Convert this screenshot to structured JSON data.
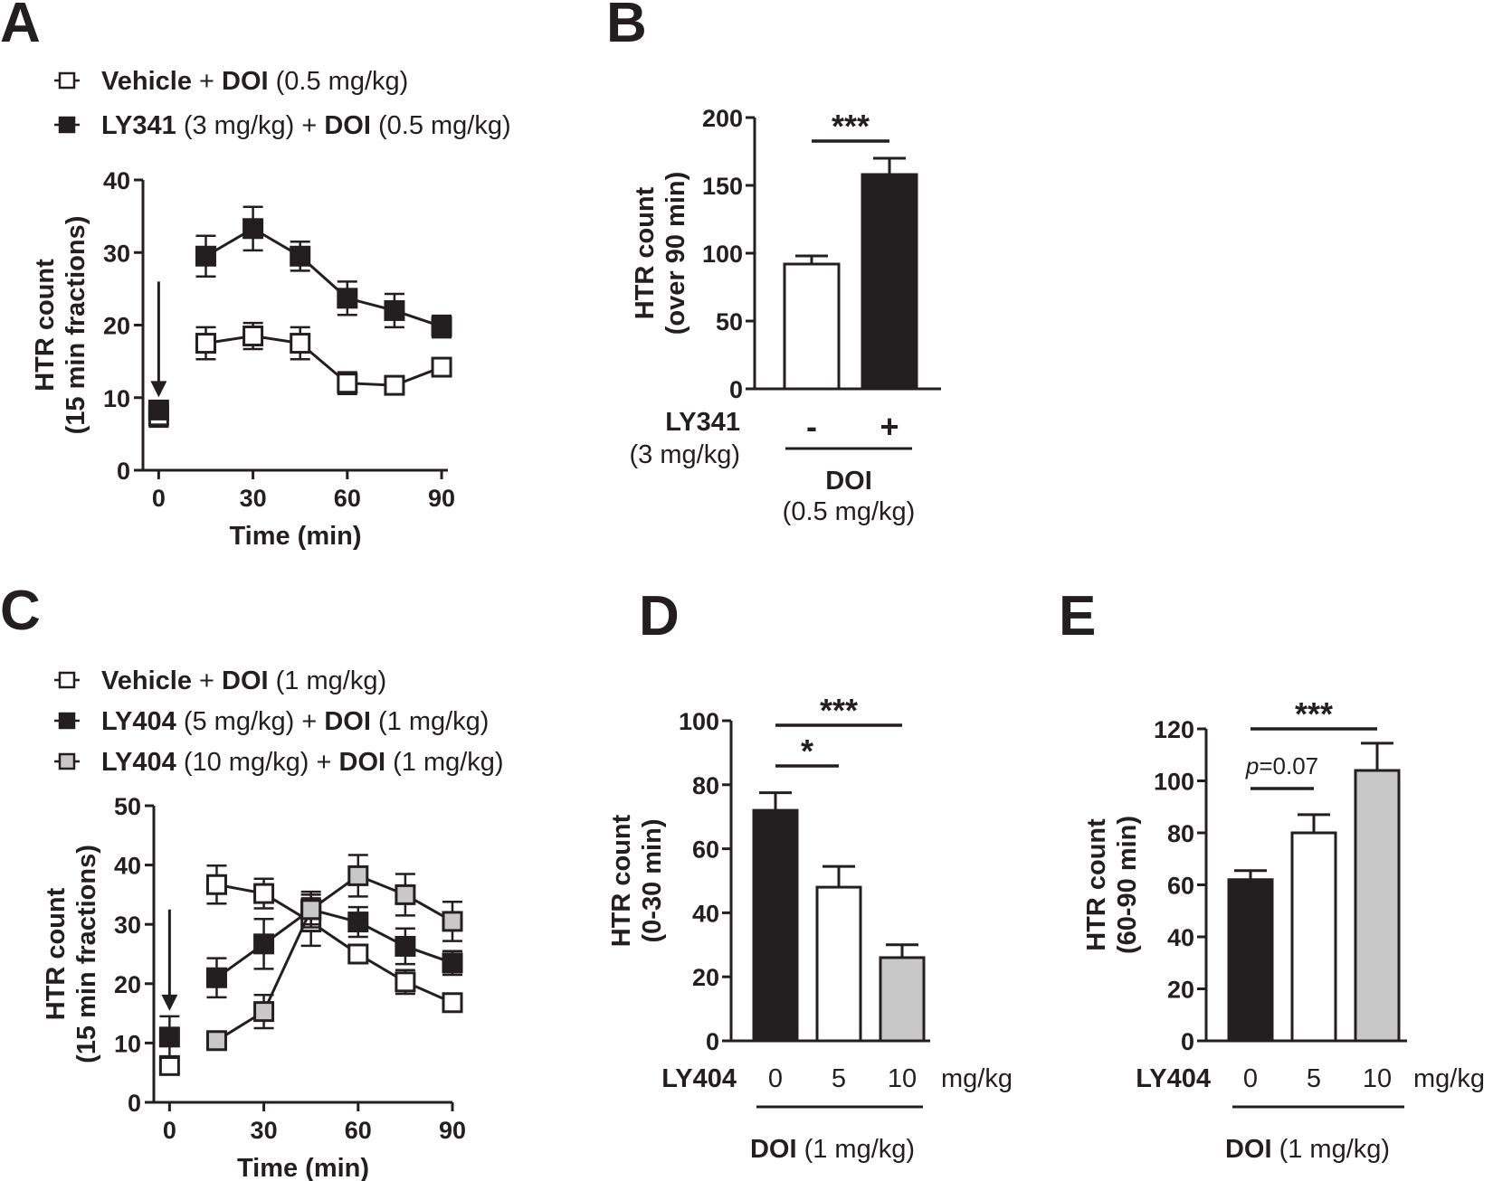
{
  "colors": {
    "ink": "#231f20",
    "filled": "#231f20",
    "open": "#ffffff",
    "gray": "#c8c8c8"
  },
  "legend_marker_icon": "line-with-square-marker",
  "arrow_icon": "down-arrow",
  "chart_data": [
    {
      "panel": "A",
      "type": "line",
      "xlabel": "Time (min)",
      "ylabel": [
        "HTR count",
        "(15 min fractions)"
      ],
      "xlim": [
        -5,
        92
      ],
      "ylim": [
        0,
        40
      ],
      "xticks": [
        0,
        30,
        60,
        90
      ],
      "yticks": [
        0,
        10,
        20,
        30,
        40
      ],
      "arrow_at_x": 0,
      "series": [
        {
          "key": "vehicle",
          "color": "#ffffff",
          "legend": [
            {
              "t": "Vehicle",
              "b": true
            },
            {
              "t": " + "
            },
            {
              "t": "DOI",
              "b": true
            },
            {
              "t": " (0.5 mg/kg)"
            }
          ],
          "x": [
            0,
            15,
            30,
            45,
            60,
            75,
            90
          ],
          "y": [
            7.5,
            17.5,
            18.5,
            17.5,
            12,
            11.7,
            14.2
          ],
          "err": [
            1.5,
            2.2,
            1.8,
            2.2,
            1.5,
            1.0,
            1.2
          ],
          "connect_from": 1
        },
        {
          "key": "ly341",
          "color": "#231f20",
          "legend": [
            {
              "t": "LY341",
              "b": true
            },
            {
              "t": " (3 mg/kg) + "
            },
            {
              "t": "DOI",
              "b": true
            },
            {
              "t": " (0.5 mg/kg)"
            }
          ],
          "x": [
            0,
            15,
            30,
            45,
            60,
            75,
            90
          ],
          "y": [
            8.3,
            29.5,
            33.3,
            29.5,
            23.7,
            22,
            19.8
          ],
          "err": [
            1.0,
            2.8,
            3.0,
            2.0,
            2.3,
            2.3,
            1.5
          ],
          "connect_from": 1
        }
      ]
    },
    {
      "panel": "B",
      "type": "bar",
      "ylabel": [
        "HTR count",
        "(over 90 min)"
      ],
      "ylim": [
        0,
        200
      ],
      "yticks": [
        0,
        50,
        100,
        150,
        200
      ],
      "bars": [
        {
          "value": 92,
          "err": 6,
          "color": "#ffffff",
          "label": "-"
        },
        {
          "value": 158,
          "err": 12,
          "color": "#231f20",
          "label": "+"
        }
      ],
      "row_label": [
        "LY341",
        "(3 mg/kg)"
      ],
      "group_label": [
        "DOI",
        "(0.5 mg/kg)"
      ],
      "significance": [
        {
          "from": 0,
          "to": 1,
          "text": "***"
        }
      ]
    },
    {
      "panel": "C",
      "type": "line",
      "xlabel": "Time (min)",
      "ylabel": [
        "HTR count",
        "(15 min fractions)"
      ],
      "xlim": [
        -5,
        90
      ],
      "ylim": [
        0,
        50
      ],
      "xticks": [
        0,
        30,
        60,
        90
      ],
      "yticks": [
        0,
        10,
        20,
        30,
        40,
        50
      ],
      "arrow_at_x": 0,
      "series": [
        {
          "key": "vehicle",
          "color": "#ffffff",
          "legend": [
            {
              "t": "Vehicle",
              "b": true
            },
            {
              "t": " + "
            },
            {
              "t": "DOI",
              "b": true
            },
            {
              "t": " (1 mg/kg)"
            }
          ],
          "x": [
            0,
            15,
            30,
            45,
            60,
            75,
            90
          ],
          "y": [
            6.2,
            36.7,
            35.2,
            30.4,
            25,
            20.3,
            16.8
          ],
          "err": [
            1.5,
            3.2,
            2.5,
            4.0,
            1.5,
            2.0,
            1.0
          ],
          "connect_from": 1
        },
        {
          "key": "ly404_5",
          "color": "#231f20",
          "legend": [
            {
              "t": "LY404",
              "b": true
            },
            {
              "t": " (5 mg/kg) + "
            },
            {
              "t": "DOI",
              "b": true
            },
            {
              "t": " (1 mg/kg)"
            }
          ],
          "x": [
            0,
            15,
            30,
            45,
            60,
            75,
            90
          ],
          "y": [
            11,
            21,
            26.7,
            32.5,
            30.4,
            26.3,
            23.5
          ],
          "err": [
            3.5,
            3.3,
            4.2,
            2.5,
            2.5,
            3.0,
            2.0
          ],
          "connect_from": 1
        },
        {
          "key": "ly404_10",
          "color": "#c8c8c8",
          "legend": [
            {
              "t": "LY404",
              "b": true
            },
            {
              "t": " (10 mg/kg) + "
            },
            {
              "t": "DOI",
              "b": true
            },
            {
              "t": " (1 mg/kg)"
            }
          ],
          "x": [
            15,
            30,
            45,
            60,
            75,
            90
          ],
          "y": [
            10.4,
            15.3,
            32.5,
            38.2,
            35,
            30.5
          ],
          "err": [
            0.8,
            2.8,
            3.0,
            3.5,
            3.5,
            3.3
          ],
          "connect_from": 0
        }
      ]
    },
    {
      "panel": "D",
      "type": "bar",
      "ylabel": [
        "HTR count",
        "(0-30 min)"
      ],
      "ylim": [
        0,
        100
      ],
      "yticks": [
        0,
        20,
        40,
        60,
        80,
        100
      ],
      "bars": [
        {
          "value": 72,
          "err": 5.5,
          "color": "#231f20",
          "label": "0"
        },
        {
          "value": 48,
          "err": 6.5,
          "color": "#ffffff",
          "label": "5"
        },
        {
          "value": 26,
          "err": 4,
          "color": "#c8c8c8",
          "label": "10"
        }
      ],
      "row_label": "LY404",
      "unit": "mg/kg",
      "group_label": [
        "DOI",
        " (1 mg/kg)"
      ],
      "significance": [
        {
          "from": 0,
          "to": 1,
          "text": "*"
        },
        {
          "from": 0,
          "to": 2,
          "text": "***"
        }
      ]
    },
    {
      "panel": "E",
      "type": "bar",
      "ylabel": [
        "HTR count",
        "(60-90 min)"
      ],
      "ylim": [
        0,
        120
      ],
      "yticks": [
        0,
        20,
        40,
        60,
        80,
        100,
        120
      ],
      "bars": [
        {
          "value": 62,
          "err": 3.5,
          "color": "#231f20",
          "label": "0"
        },
        {
          "value": 80,
          "err": 7,
          "color": "#ffffff",
          "label": "5"
        },
        {
          "value": 104,
          "err": 10.5,
          "color": "#c8c8c8",
          "label": "10"
        }
      ],
      "row_label": "LY404",
      "unit": "mg/kg",
      "group_label": [
        "DOI",
        " (1 mg/kg)"
      ],
      "significance": [
        {
          "from": 0,
          "to": 1,
          "text": "p=0.07",
          "italic_prefix": "p"
        },
        {
          "from": 0,
          "to": 2,
          "text": "***"
        }
      ]
    }
  ]
}
